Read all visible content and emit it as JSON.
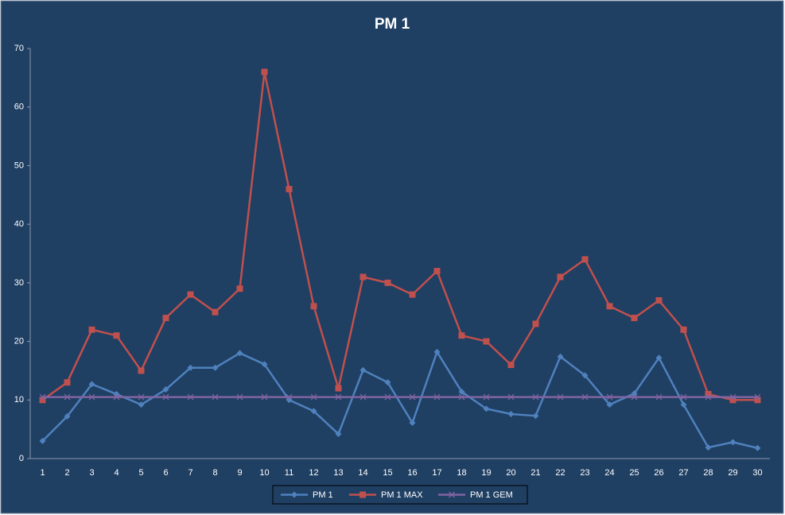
{
  "chart_data": {
    "type": "line",
    "title": "PM 1",
    "categories": [
      "1",
      "2",
      "3",
      "4",
      "5",
      "6",
      "7",
      "8",
      "9",
      "10",
      "11",
      "12",
      "13",
      "14",
      "15",
      "16",
      "17",
      "18",
      "19",
      "20",
      "21",
      "22",
      "23",
      "24",
      "25",
      "26",
      "27",
      "28",
      "29",
      "30"
    ],
    "series": [
      {
        "name": "PM 1",
        "color": "#4f81bd",
        "marker": "diamond",
        "values": [
          3.0,
          7.2,
          12.7,
          11.0,
          9.2,
          11.8,
          15.5,
          15.5,
          18.0,
          16.1,
          10.0,
          8.1,
          4.2,
          15.1,
          13.0,
          6.1,
          18.2,
          11.4,
          8.5,
          7.6,
          7.3,
          17.4,
          14.2,
          9.2,
          11.1,
          17.2,
          9.2,
          1.9,
          2.8,
          1.8
        ]
      },
      {
        "name": "PM 1 MAX",
        "color": "#c0504d",
        "marker": "square",
        "values": [
          10,
          13,
          22,
          21,
          15,
          24,
          28,
          25,
          29,
          66,
          46,
          26,
          12,
          31,
          30,
          28,
          32,
          21,
          20,
          16,
          23,
          31,
          34,
          26,
          24,
          27,
          22,
          11,
          10,
          10
        ]
      },
      {
        "name": "PM 1 GEM",
        "color": "#8064a2",
        "marker": "x",
        "values": [
          10.5,
          10.5,
          10.5,
          10.5,
          10.5,
          10.5,
          10.5,
          10.5,
          10.5,
          10.5,
          10.5,
          10.5,
          10.5,
          10.5,
          10.5,
          10.5,
          10.5,
          10.5,
          10.5,
          10.5,
          10.5,
          10.5,
          10.5,
          10.5,
          10.5,
          10.5,
          10.5,
          10.5,
          10.5,
          10.5
        ]
      }
    ],
    "ylim": [
      0,
      70
    ],
    "yticks": [
      0,
      10,
      20,
      30,
      40,
      50,
      60,
      70
    ],
    "grid": false,
    "legend": "bottom"
  }
}
